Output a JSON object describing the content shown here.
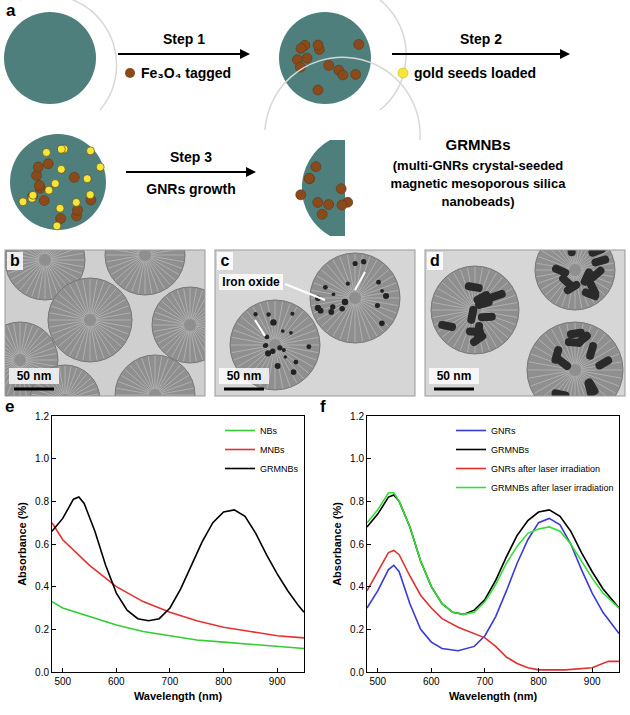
{
  "schematic": {
    "label": "a",
    "steps": [
      {
        "name": "Step 1",
        "text": "Fe₃O₄ tagged"
      },
      {
        "name": "Step 2",
        "text": "gold seeds loaded"
      },
      {
        "name": "Step 3",
        "text": "GNRs growth"
      }
    ],
    "product": {
      "name": "GRMNBs",
      "text": [
        "(multi-GNRs crystal-seeded",
        "magnetic mesoporous silica",
        "nanobeads)"
      ]
    }
  },
  "images": [
    {
      "label": "b",
      "scale_bar": "50 nm"
    },
    {
      "label": "c",
      "scale_bar": "50 nm",
      "annotation": "Iron oxide"
    },
    {
      "label": "d",
      "scale_bar": "50 nm"
    }
  ],
  "chart_data": [
    {
      "panel": "e",
      "type": "line",
      "x_label": "Wavelength (nm)",
      "y_label": "Absorbance (%)",
      "xlim": [
        480,
        950
      ],
      "xticks": [
        500,
        600,
        700,
        800,
        900
      ],
      "ylim": [
        0,
        1.2
      ],
      "yticks": [
        {
          "value": 0,
          "label": "0.0"
        },
        0.2,
        0.4,
        0.6,
        0.8,
        {
          "value": 1,
          "label": "1.0"
        },
        1.2
      ],
      "grid": false,
      "legend": "upper right",
      "series": [
        {
          "name": "NBs",
          "color": "#33cc33",
          "x": [
            480,
            500,
            550,
            600,
            650,
            700,
            750,
            800,
            850,
            900,
            950
          ],
          "values": [
            0.33,
            0.3,
            0.26,
            0.22,
            0.19,
            0.17,
            0.15,
            0.14,
            0.13,
            0.12,
            0.11
          ]
        },
        {
          "name": "MNBs",
          "color": "#e8312f",
          "x": [
            480,
            500,
            550,
            600,
            650,
            700,
            750,
            800,
            850,
            900,
            950
          ],
          "values": [
            0.7,
            0.62,
            0.5,
            0.4,
            0.33,
            0.28,
            0.24,
            0.21,
            0.19,
            0.17,
            0.16
          ]
        },
        {
          "name": "GRMNBs",
          "color": "#000000",
          "x": [
            480,
            500,
            520,
            530,
            540,
            560,
            580,
            600,
            620,
            640,
            660,
            680,
            700,
            720,
            740,
            760,
            780,
            800,
            820,
            840,
            860,
            880,
            900,
            920,
            940,
            950
          ],
          "values": [
            0.66,
            0.72,
            0.81,
            0.82,
            0.79,
            0.66,
            0.5,
            0.37,
            0.29,
            0.25,
            0.24,
            0.25,
            0.3,
            0.39,
            0.5,
            0.61,
            0.7,
            0.75,
            0.76,
            0.73,
            0.65,
            0.55,
            0.46,
            0.38,
            0.31,
            0.28
          ]
        }
      ]
    },
    {
      "panel": "f",
      "type": "line",
      "x_label": "Wavelength (nm)",
      "y_label": "Absorbance (%)",
      "xlim": [
        480,
        950
      ],
      "xticks": [
        500,
        600,
        700,
        800,
        900
      ],
      "ylim": [
        0,
        1.2
      ],
      "yticks": [
        {
          "value": 0,
          "label": "0.0"
        },
        0.2,
        0.4,
        0.6,
        0.8,
        {
          "value": 1,
          "label": "1.0"
        },
        1.2
      ],
      "grid": false,
      "legend": "upper right",
      "series": [
        {
          "name": "GNRs",
          "color": "#3a3ad6",
          "x": [
            480,
            500,
            520,
            530,
            540,
            560,
            580,
            600,
            620,
            650,
            680,
            700,
            720,
            740,
            760,
            780,
            800,
            820,
            840,
            860,
            880,
            900,
            920,
            950
          ],
          "values": [
            0.3,
            0.38,
            0.48,
            0.5,
            0.47,
            0.32,
            0.2,
            0.14,
            0.11,
            0.1,
            0.12,
            0.17,
            0.26,
            0.38,
            0.51,
            0.62,
            0.7,
            0.72,
            0.69,
            0.6,
            0.48,
            0.37,
            0.28,
            0.18
          ]
        },
        {
          "name": "GRMNBs",
          "color": "#000000",
          "x": [
            480,
            500,
            520,
            530,
            540,
            560,
            580,
            600,
            620,
            640,
            660,
            680,
            700,
            720,
            740,
            760,
            780,
            800,
            820,
            840,
            860,
            880,
            900,
            920,
            950
          ],
          "values": [
            0.68,
            0.74,
            0.82,
            0.83,
            0.8,
            0.68,
            0.52,
            0.4,
            0.32,
            0.28,
            0.27,
            0.29,
            0.34,
            0.43,
            0.54,
            0.64,
            0.71,
            0.75,
            0.76,
            0.73,
            0.66,
            0.56,
            0.47,
            0.39,
            0.3
          ]
        },
        {
          "name": "GNRs after laser irradiation",
          "color": "#e03030",
          "x": [
            480,
            500,
            520,
            530,
            540,
            560,
            580,
            600,
            620,
            650,
            680,
            700,
            720,
            740,
            760,
            780,
            800,
            850,
            900,
            930,
            950
          ],
          "values": [
            0.38,
            0.47,
            0.56,
            0.57,
            0.55,
            0.45,
            0.36,
            0.3,
            0.25,
            0.21,
            0.18,
            0.16,
            0.12,
            0.07,
            0.04,
            0.02,
            0.01,
            0.01,
            0.02,
            0.05,
            0.05
          ]
        },
        {
          "name": "GRMNBs after laser irradiation",
          "color": "#33e033",
          "x": [
            480,
            500,
            520,
            530,
            540,
            560,
            580,
            600,
            620,
            640,
            660,
            680,
            700,
            720,
            740,
            760,
            780,
            800,
            820,
            840,
            860,
            880,
            900,
            920,
            950
          ],
          "values": [
            0.7,
            0.76,
            0.84,
            0.84,
            0.8,
            0.68,
            0.52,
            0.4,
            0.32,
            0.28,
            0.27,
            0.28,
            0.33,
            0.41,
            0.51,
            0.59,
            0.65,
            0.67,
            0.68,
            0.66,
            0.6,
            0.52,
            0.44,
            0.37,
            0.3
          ]
        }
      ]
    }
  ]
}
